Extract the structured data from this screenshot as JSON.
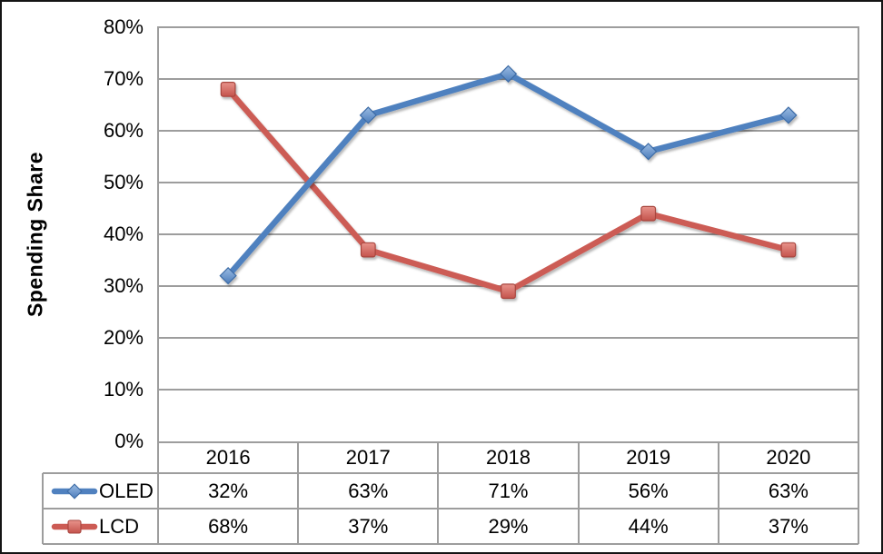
{
  "chart_data": {
    "type": "line",
    "title": "",
    "xlabel": "",
    "ylabel": "Spending Share",
    "categories": [
      "2016",
      "2017",
      "2018",
      "2019",
      "2020"
    ],
    "series": [
      {
        "name": "OLED",
        "values": [
          32,
          63,
          71,
          56,
          63
        ],
        "labels": [
          "32%",
          "63%",
          "71%",
          "56%",
          "63%"
        ],
        "color": "#5081BF",
        "marker": "diamond",
        "marker_fill_top": "#9BBCE3",
        "marker_fill_bottom": "#4C7DBB",
        "marker_stroke": "#3E6CA6"
      },
      {
        "name": "LCD",
        "values": [
          68,
          37,
          29,
          44,
          37
        ],
        "labels": [
          "68%",
          "37%",
          "29%",
          "44%",
          "37%"
        ],
        "color": "#CC5B54",
        "marker": "square",
        "marker_fill_top": "#E8938B",
        "marker_fill_bottom": "#C4534C",
        "marker_stroke": "#A7443E"
      }
    ],
    "ylim": [
      0,
      80
    ],
    "ytick_step": 10,
    "ytick_labels": [
      "0%",
      "10%",
      "20%",
      "30%",
      "40%",
      "50%",
      "60%",
      "70%",
      "80%"
    ],
    "grid": true,
    "legend_position": "data-table-left",
    "data_table": true
  },
  "palette": {
    "gridline": "#9d9d9d",
    "table_border": "#9d9d9d",
    "frame": "#141414",
    "text": "#000000",
    "background": "#ffffff"
  }
}
